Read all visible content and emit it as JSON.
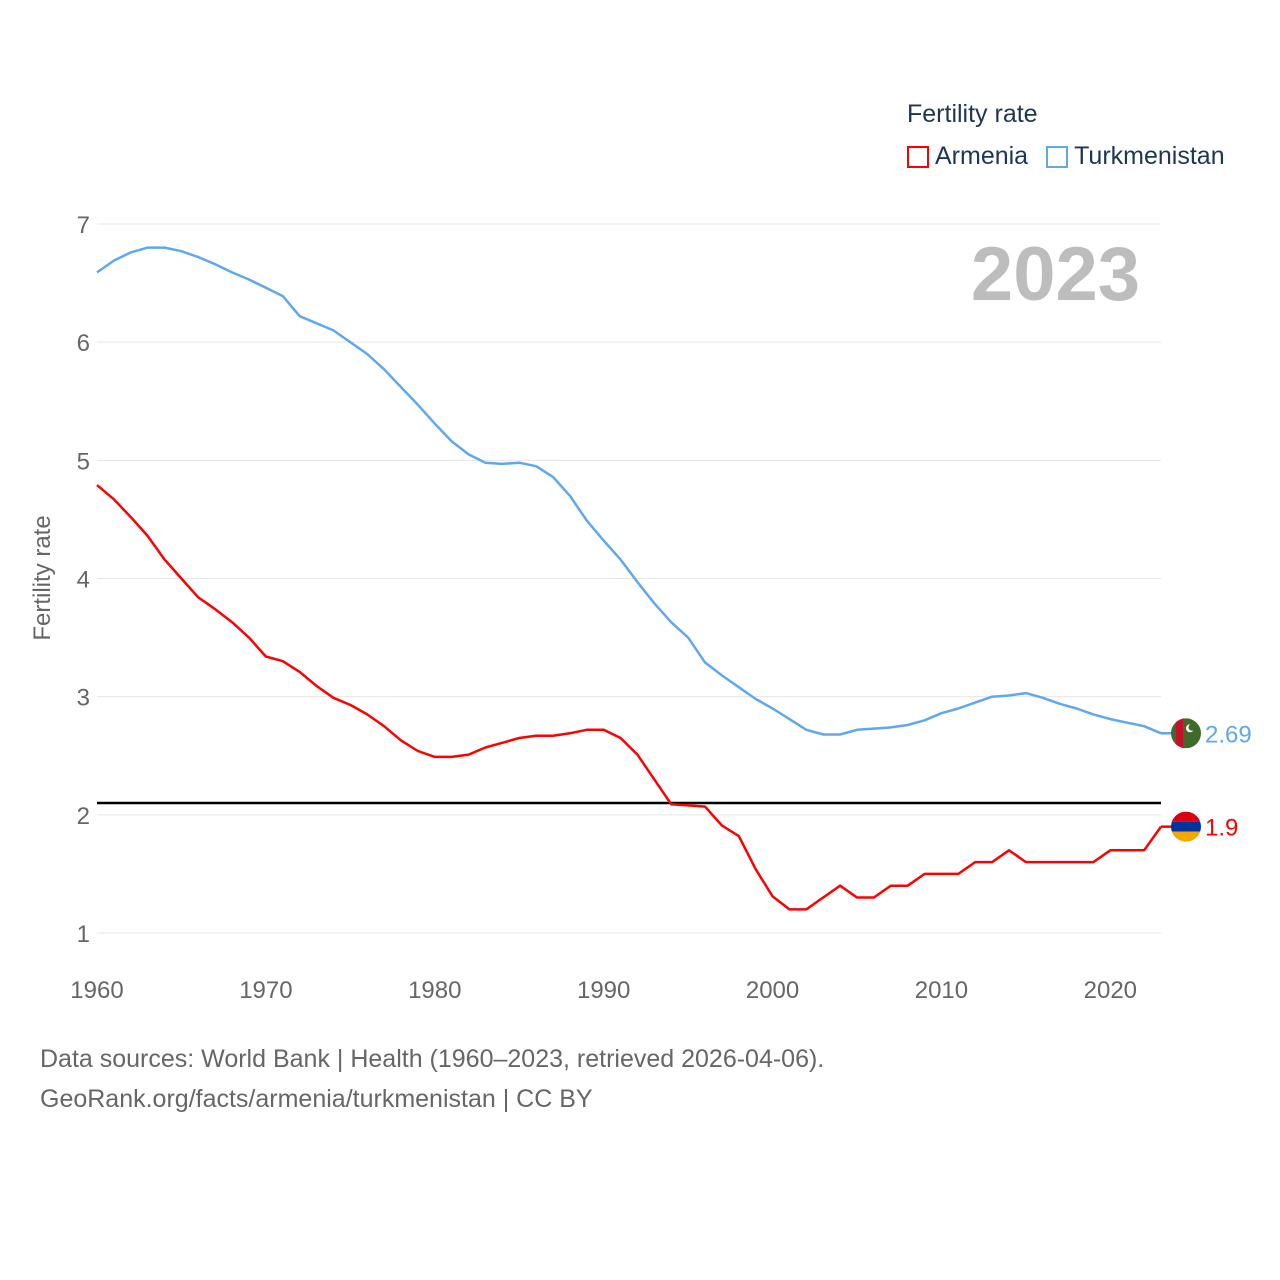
{
  "chart_data": {
    "type": "line",
    "title": "Fertility rate",
    "ylabel": "Fertility rate",
    "xlabel": "",
    "year_label": "2023",
    "xlim": [
      1960,
      2023
    ],
    "ylim": [
      1,
      7
    ],
    "xticks": [
      1960,
      1970,
      1980,
      1990,
      2000,
      2010,
      2020
    ],
    "yticks": [
      1,
      2,
      3,
      4,
      5,
      6,
      7
    ],
    "grid": true,
    "legend_placement": "top-right",
    "reference_line": 2.1,
    "x": [
      1960,
      1961,
      1962,
      1963,
      1964,
      1965,
      1966,
      1967,
      1968,
      1969,
      1970,
      1971,
      1972,
      1973,
      1974,
      1975,
      1976,
      1977,
      1978,
      1979,
      1980,
      1981,
      1982,
      1983,
      1984,
      1985,
      1986,
      1987,
      1988,
      1989,
      1990,
      1991,
      1992,
      1993,
      1994,
      1995,
      1996,
      1997,
      1998,
      1999,
      2000,
      2001,
      2002,
      2003,
      2004,
      2005,
      2006,
      2007,
      2008,
      2009,
      2010,
      2011,
      2012,
      2013,
      2014,
      2015,
      2016,
      2017,
      2018,
      2019,
      2020,
      2021,
      2022,
      2023
    ],
    "series": [
      {
        "name": "Armenia",
        "color": "#ff0000",
        "end_label": "1.9",
        "values": [
          4.79,
          4.67,
          4.52,
          4.36,
          4.16,
          4.0,
          3.84,
          3.74,
          3.63,
          3.5,
          3.34,
          3.3,
          3.21,
          3.09,
          2.99,
          2.93,
          2.85,
          2.75,
          2.63,
          2.54,
          2.49,
          2.49,
          2.51,
          2.57,
          2.61,
          2.65,
          2.67,
          2.67,
          2.69,
          2.72,
          2.72,
          2.65,
          2.51,
          2.3,
          2.09,
          2.08,
          2.07,
          1.91,
          1.82,
          1.54,
          1.31,
          1.2,
          1.2,
          1.3,
          1.4,
          1.3,
          1.3,
          1.4,
          1.4,
          1.5,
          1.5,
          1.5,
          1.6,
          1.6,
          1.7,
          1.6,
          1.6,
          1.6,
          1.6,
          1.6,
          1.7,
          1.7,
          1.7,
          1.9
        ]
      },
      {
        "name": "Turkmenistan",
        "color": "#5fa8ec",
        "end_label": "2.69",
        "values": [
          6.59,
          6.69,
          6.76,
          6.8,
          6.8,
          6.77,
          6.72,
          6.66,
          6.59,
          6.53,
          6.46,
          6.39,
          6.22,
          6.16,
          6.1,
          6.0,
          5.9,
          5.77,
          5.62,
          5.47,
          5.31,
          5.16,
          5.05,
          4.98,
          4.97,
          4.98,
          4.95,
          4.86,
          4.7,
          4.49,
          4.32,
          4.16,
          3.97,
          3.79,
          3.63,
          3.5,
          3.29,
          3.18,
          3.08,
          2.98,
          2.9,
          2.81,
          2.72,
          2.68,
          2.68,
          2.72,
          2.73,
          2.74,
          2.76,
          2.8,
          2.86,
          2.9,
          2.95,
          3.0,
          3.01,
          3.03,
          2.99,
          2.94,
          2.9,
          2.85,
          2.81,
          2.78,
          2.75,
          2.69
        ]
      }
    ]
  },
  "sources": {
    "line1": "Data sources: World Bank | Health (1960–2023, retrieved 2026-04-06).",
    "line2": "GeoRank.org/facts/armenia/turkmenistan | CC BY"
  }
}
